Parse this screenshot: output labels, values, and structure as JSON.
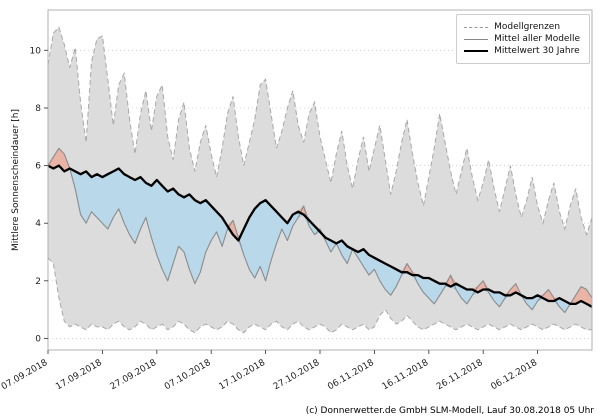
{
  "footer": {
    "caption": "(c) Donnerwetter.de GmbH SLM-Modell, Lauf 30.08.2018 05 Uhr"
  },
  "chart_data": {
    "type": "line",
    "title": "",
    "xlabel": "",
    "ylabel": "Mittlere Sonnenscheindauer [h]",
    "ylim": [
      -0.4,
      11.4
    ],
    "yticks": [
      0,
      2,
      4,
      6,
      8,
      10
    ],
    "grid": "dotted-horizontal",
    "n_points": 101,
    "xtick_indices": [
      0,
      10,
      20,
      30,
      40,
      50,
      60,
      70,
      80,
      90
    ],
    "xtick_labels": [
      "07.09.2018",
      "17.09.2018",
      "27.09.2018",
      "07.10.2018",
      "17.10.2018",
      "27.10.2018",
      "06.11.2018",
      "16.11.2018",
      "26.11.2018",
      "06.12.2018"
    ],
    "legend": {
      "position": "upper right",
      "items": [
        "Modellgrenzen",
        "Mittel aller Modelle",
        "Mittelwert 30 Jahre"
      ]
    },
    "colors": {
      "band": "#dcdcdc",
      "below_fill": "#b9d8ea",
      "below_edge": "#8ec4dd",
      "above_fill": "#e9b4a6",
      "above_edge": "#d99c8f",
      "bound_line": "#a8a8a8",
      "model_line": "#8c8c8c",
      "climate_line": "#000000",
      "grid_line": "#c8c8c8",
      "frame": "#b0b0b0"
    },
    "series": [
      {
        "name": "Modellgrenzen (obere Grenze)",
        "role": "upper_bound",
        "style": "dashed-gray",
        "values": [
          9.5,
          10.6,
          10.8,
          10.2,
          9.4,
          10.1,
          8.2,
          6.8,
          9.6,
          10.4,
          10.5,
          9.0,
          7.4,
          8.8,
          9.2,
          7.6,
          6.4,
          7.8,
          8.6,
          7.2,
          8.4,
          8.8,
          7.0,
          6.2,
          7.6,
          8.2,
          6.6,
          5.8,
          6.8,
          7.4,
          6.4,
          5.6,
          6.6,
          7.8,
          8.4,
          7.0,
          6.0,
          6.8,
          7.6,
          8.8,
          9.0,
          7.8,
          6.6,
          7.2,
          8.0,
          8.6,
          7.4,
          6.8,
          7.8,
          8.2,
          7.0,
          6.2,
          5.4,
          6.4,
          7.2,
          6.0,
          5.2,
          6.2,
          7.0,
          5.8,
          6.6,
          7.4,
          6.2,
          5.0,
          5.8,
          6.8,
          7.6,
          6.4,
          5.4,
          4.6,
          5.6,
          6.6,
          7.8,
          6.8,
          5.8,
          5.0,
          5.8,
          6.6,
          5.6,
          4.8,
          5.4,
          6.2,
          5.2,
          4.4,
          5.2,
          6.0,
          5.0,
          4.2,
          4.8,
          5.6,
          4.6,
          4.0,
          4.8,
          5.4,
          4.4,
          3.8,
          4.6,
          5.2,
          4.2,
          3.6,
          4.2
        ]
      },
      {
        "name": "Modellgrenzen (untere Grenze)",
        "role": "lower_bound",
        "style": "dashed-gray",
        "values": [
          2.8,
          2.6,
          1.4,
          0.6,
          0.4,
          0.5,
          0.4,
          0.3,
          0.5,
          0.4,
          0.4,
          0.3,
          0.5,
          0.6,
          0.4,
          0.3,
          0.4,
          0.6,
          0.5,
          0.3,
          0.4,
          0.5,
          0.3,
          0.4,
          0.6,
          0.5,
          0.3,
          0.2,
          0.4,
          0.5,
          0.4,
          0.3,
          0.4,
          0.6,
          0.5,
          0.3,
          0.2,
          0.4,
          0.5,
          0.4,
          0.3,
          0.5,
          0.6,
          0.4,
          0.3,
          0.5,
          0.6,
          0.4,
          0.3,
          0.4,
          0.5,
          0.4,
          0.2,
          0.3,
          0.5,
          0.4,
          0.3,
          0.4,
          0.5,
          0.3,
          0.4,
          0.8,
          1.0,
          0.7,
          0.5,
          0.6,
          0.8,
          0.6,
          0.4,
          0.3,
          0.4,
          0.5,
          0.6,
          0.5,
          0.4,
          0.3,
          0.4,
          0.5,
          0.4,
          0.3,
          0.4,
          0.5,
          0.4,
          0.3,
          0.4,
          0.5,
          0.4,
          0.3,
          0.4,
          0.5,
          0.4,
          0.3,
          0.4,
          0.5,
          0.4,
          0.3,
          0.4,
          0.5,
          0.4,
          0.3,
          0.3
        ]
      },
      {
        "name": "Mittel aller Modelle",
        "role": "model_mean",
        "style": "solid-gray",
        "values": [
          6.0,
          6.3,
          6.6,
          6.4,
          5.9,
          5.2,
          4.3,
          4.0,
          4.4,
          4.2,
          4.0,
          3.8,
          4.2,
          4.5,
          4.0,
          3.6,
          3.3,
          3.8,
          4.2,
          3.5,
          2.9,
          2.4,
          2.0,
          2.6,
          3.2,
          3.0,
          2.4,
          1.9,
          2.3,
          3.0,
          3.4,
          3.7,
          3.2,
          3.8,
          4.1,
          3.5,
          2.9,
          2.4,
          2.1,
          2.5,
          2.0,
          2.7,
          3.3,
          3.8,
          3.4,
          3.9,
          4.2,
          4.6,
          3.9,
          3.6,
          3.8,
          3.4,
          3.0,
          3.3,
          2.9,
          2.6,
          3.1,
          2.8,
          2.5,
          2.2,
          2.4,
          2.0,
          1.7,
          1.5,
          1.8,
          2.2,
          2.6,
          2.3,
          1.9,
          1.6,
          1.4,
          1.2,
          1.5,
          1.8,
          2.2,
          1.7,
          1.4,
          1.2,
          1.5,
          1.8,
          2.0,
          1.6,
          1.3,
          1.1,
          1.4,
          1.7,
          1.9,
          1.5,
          1.2,
          1.0,
          1.3,
          1.5,
          1.7,
          1.4,
          1.1,
          0.9,
          1.2,
          1.5,
          1.8,
          1.7,
          1.4
        ]
      },
      {
        "name": "Mittelwert 30 Jahre",
        "role": "climate_mean",
        "style": "thick-black",
        "values": [
          6.0,
          5.9,
          6.0,
          5.8,
          5.9,
          5.8,
          5.7,
          5.8,
          5.6,
          5.7,
          5.6,
          5.7,
          5.8,
          5.9,
          5.7,
          5.6,
          5.5,
          5.6,
          5.4,
          5.3,
          5.5,
          5.3,
          5.1,
          5.2,
          5.0,
          4.9,
          5.0,
          4.8,
          4.7,
          4.8,
          4.6,
          4.4,
          4.2,
          3.9,
          3.6,
          3.4,
          3.8,
          4.2,
          4.5,
          4.7,
          4.8,
          4.6,
          4.4,
          4.2,
          4.0,
          4.3,
          4.4,
          4.3,
          4.1,
          3.9,
          3.7,
          3.5,
          3.4,
          3.3,
          3.4,
          3.2,
          3.1,
          3.0,
          3.1,
          2.9,
          2.8,
          2.7,
          2.6,
          2.5,
          2.4,
          2.3,
          2.3,
          2.2,
          2.2,
          2.1,
          2.1,
          2.0,
          1.9,
          1.9,
          1.8,
          1.9,
          1.8,
          1.7,
          1.7,
          1.6,
          1.7,
          1.7,
          1.6,
          1.6,
          1.5,
          1.5,
          1.6,
          1.5,
          1.4,
          1.4,
          1.5,
          1.4,
          1.3,
          1.3,
          1.4,
          1.3,
          1.2,
          1.2,
          1.3,
          1.2,
          1.1
        ]
      }
    ]
  }
}
